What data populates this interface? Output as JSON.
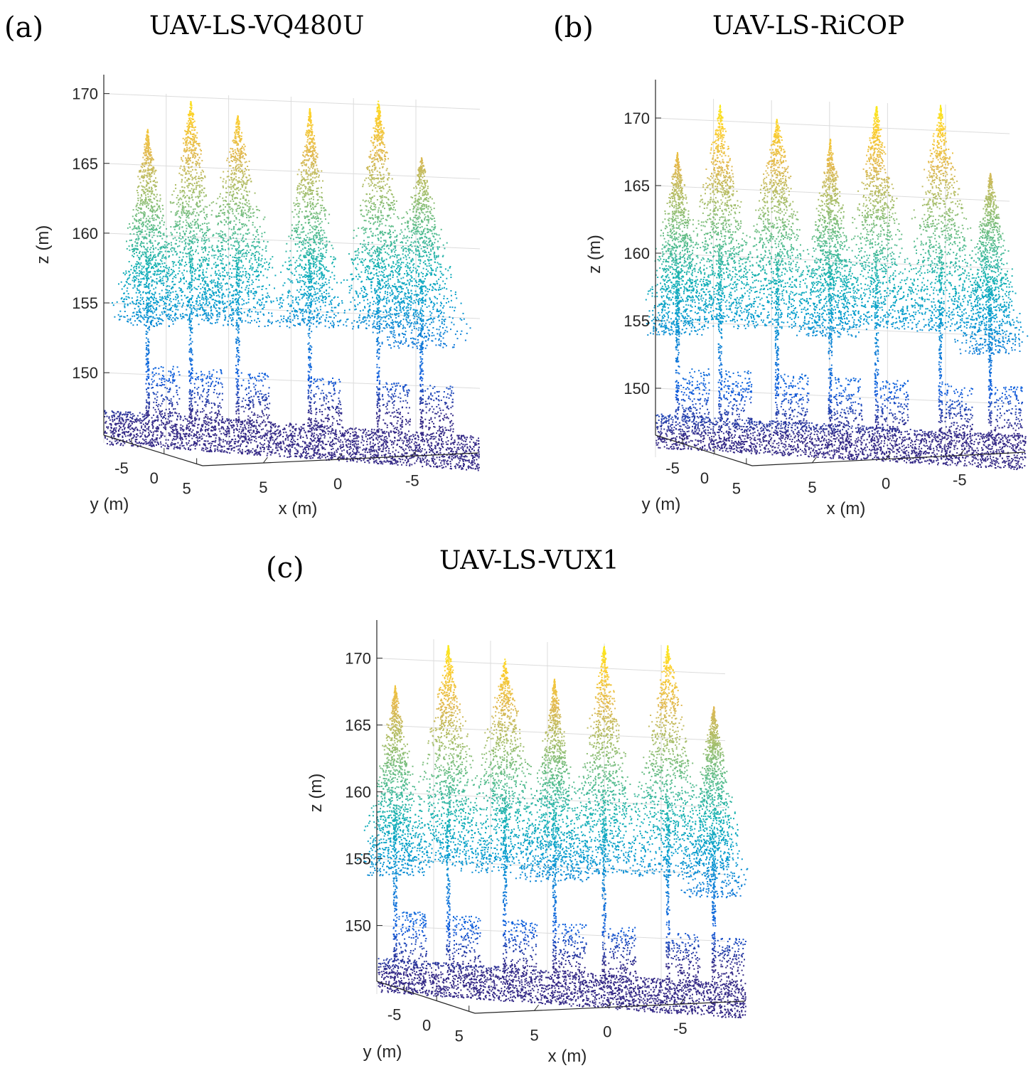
{
  "chart_data": [
    {
      "type": "scatter",
      "panel_label": "(a)",
      "title": "UAV-LS-VQ480U",
      "xlabel": "x (m)",
      "ylabel": "y (m)",
      "zlabel": "z (m)",
      "x_ticks": [
        "5",
        "0",
        "-5"
      ],
      "y_ticks": [
        "-5",
        "0",
        "5"
      ],
      "z_ticks": [
        "150",
        "155",
        "160",
        "165",
        "170"
      ],
      "zlim": [
        147,
        171
      ],
      "grid": true,
      "trees": [
        {
          "x": 0.1,
          "top": 167.5
        },
        {
          "x": 0.22,
          "top": 169.5
        },
        {
          "x": 0.35,
          "top": 168.5
        },
        {
          "x": 0.55,
          "top": 169.0
        },
        {
          "x": 0.74,
          "top": 169.5
        },
        {
          "x": 0.86,
          "top": 165.5
        }
      ]
    },
    {
      "type": "scatter",
      "panel_label": "(b)",
      "title": "UAV-LS-RiCOP",
      "xlabel": "x (m)",
      "ylabel": "y (m)",
      "zlabel": "z (m)",
      "x_ticks": [
        "5",
        "0",
        "-5"
      ],
      "y_ticks": [
        "-5",
        "0",
        "5"
      ],
      "z_ticks": [
        "150",
        "155",
        "160",
        "165",
        "170"
      ],
      "zlim": [
        147,
        172
      ],
      "grid": true,
      "trees": [
        {
          "x": 0.04,
          "top": 167.5
        },
        {
          "x": 0.16,
          "top": 171.0
        },
        {
          "x": 0.32,
          "top": 170.0
        },
        {
          "x": 0.47,
          "top": 168.5
        },
        {
          "x": 0.6,
          "top": 171.0
        },
        {
          "x": 0.78,
          "top": 171.0
        },
        {
          "x": 0.92,
          "top": 166.0
        }
      ]
    },
    {
      "type": "scatter",
      "panel_label": "(c)",
      "title": "UAV-LS-VUX1",
      "xlabel": "x (m)",
      "ylabel": "y (m)",
      "zlabel": "z (m)",
      "x_ticks": [
        "5",
        "0",
        "-5"
      ],
      "y_ticks": [
        "-5",
        "0",
        "5"
      ],
      "z_ticks": [
        "150",
        "155",
        "160",
        "165",
        "170"
      ],
      "zlim": [
        147,
        172
      ],
      "grid": true,
      "trees": [
        {
          "x": 0.03,
          "top": 168.0
        },
        {
          "x": 0.18,
          "top": 171.0
        },
        {
          "x": 0.34,
          "top": 170.0
        },
        {
          "x": 0.48,
          "top": 168.5
        },
        {
          "x": 0.62,
          "top": 171.0
        },
        {
          "x": 0.8,
          "top": 171.0
        },
        {
          "x": 0.93,
          "top": 166.5
        }
      ]
    }
  ]
}
